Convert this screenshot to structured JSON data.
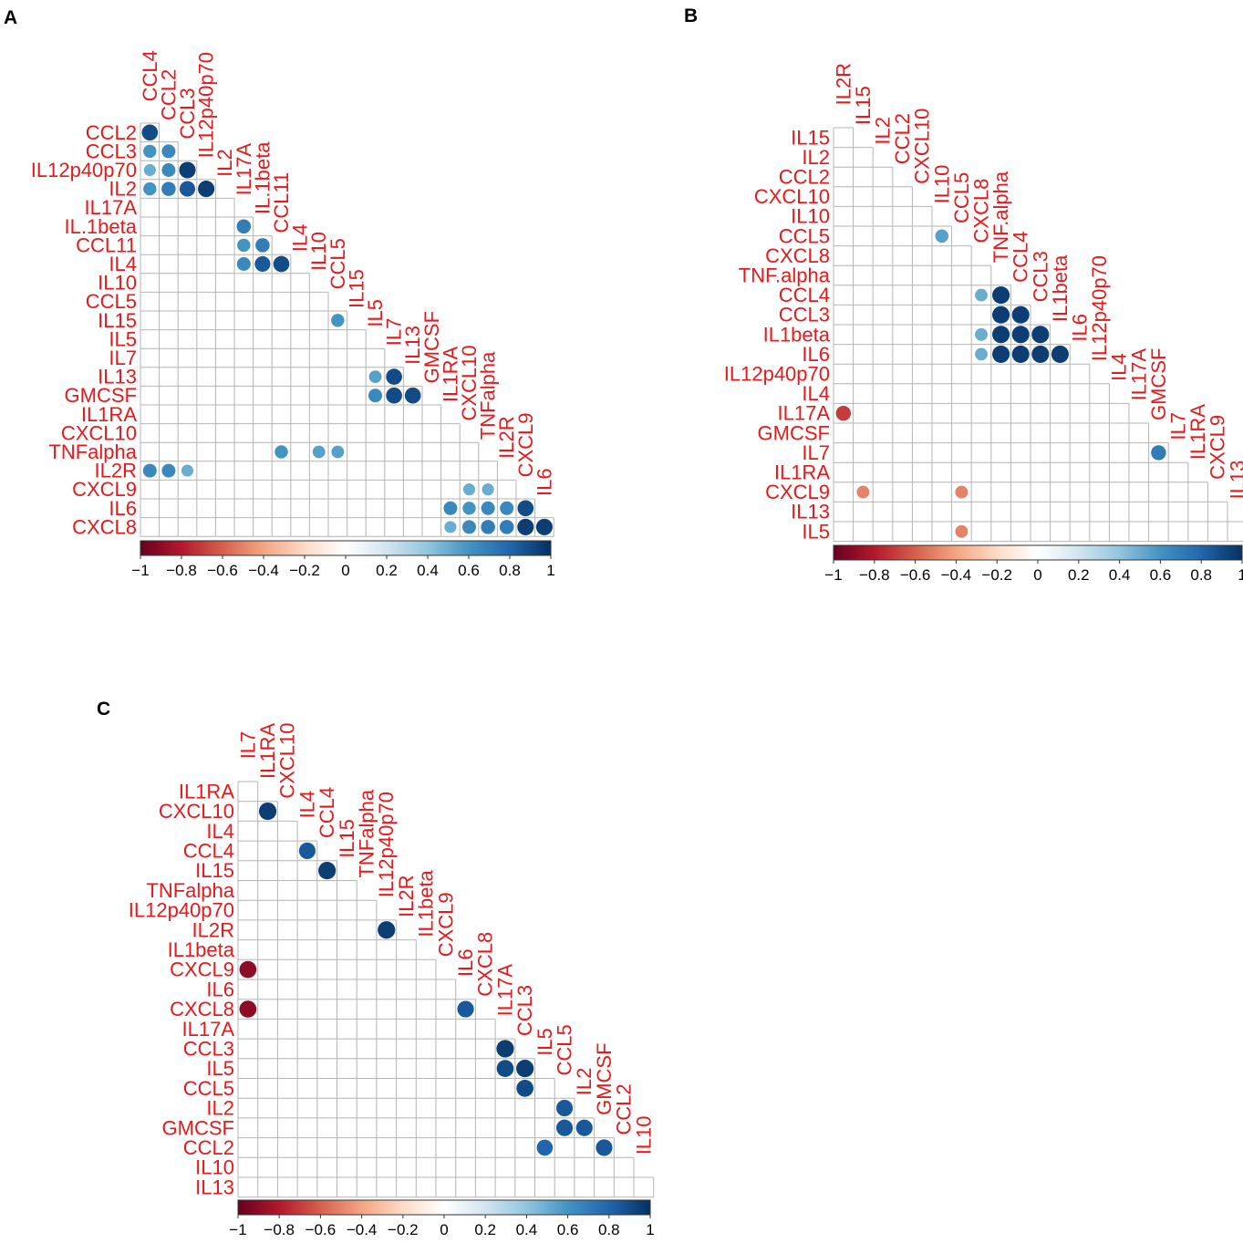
{
  "colors": {
    "label": "#e41a1c",
    "grid": "#b4b4b4",
    "colorscale": [
      "#67001f",
      "#b2182b",
      "#d6604d",
      "#f4a582",
      "#fddbc7",
      "#ffffff",
      "#d1e5f0",
      "#92c5de",
      "#4393c3",
      "#2166ac",
      "#053061"
    ]
  },
  "chart_data": [
    {
      "type": "heatmap",
      "subtype": "correlation-lower-triangle",
      "panel": "A",
      "labels": [
        "CCL4",
        "CCL2",
        "CCL3",
        "IL12p40p70",
        "IL2",
        "IL17A",
        "IL.1beta",
        "CCL11",
        "IL4",
        "IL10",
        "CCL5",
        "IL15",
        "IL5",
        "IL7",
        "IL13",
        "GMCSF",
        "IL1RA",
        "CXCL10",
        "TNFalpha",
        "IL2R",
        "CXCL9",
        "IL6",
        "CXCL8"
      ],
      "colorbar_ticks": [
        "−1",
        "−0.8",
        "−0.6",
        "−0.4",
        "−0.2",
        "0",
        "0.2",
        "0.4",
        "0.6",
        "0.8",
        "1"
      ],
      "colorbar_range": [
        -1,
        1
      ],
      "cells": [
        {
          "row": "CCL2",
          "col": "CCL4",
          "r": 0.9
        },
        {
          "row": "CCL3",
          "col": "CCL4",
          "r": 0.6
        },
        {
          "row": "CCL3",
          "col": "CCL2",
          "r": 0.65
        },
        {
          "row": "IL12p40p70",
          "col": "CCL4",
          "r": 0.5
        },
        {
          "row": "IL12p40p70",
          "col": "CCL2",
          "r": 0.65
        },
        {
          "row": "IL12p40p70",
          "col": "CCL3",
          "r": 0.95
        },
        {
          "row": "IL2",
          "col": "CCL4",
          "r": 0.6
        },
        {
          "row": "IL2",
          "col": "CCL2",
          "r": 0.7
        },
        {
          "row": "IL2",
          "col": "CCL3",
          "r": 0.85
        },
        {
          "row": "IL2",
          "col": "IL12p40p70",
          "r": 0.95
        },
        {
          "row": "IL.1beta",
          "col": "IL17A",
          "r": 0.7
        },
        {
          "row": "CCL11",
          "col": "IL17A",
          "r": 0.6
        },
        {
          "row": "CCL11",
          "col": "IL.1beta",
          "r": 0.7
        },
        {
          "row": "IL4",
          "col": "IL17A",
          "r": 0.65
        },
        {
          "row": "IL4",
          "col": "IL.1beta",
          "r": 0.85
        },
        {
          "row": "IL4",
          "col": "CCL11",
          "r": 0.9
        },
        {
          "row": "IL15",
          "col": "CCL5",
          "r": 0.6
        },
        {
          "row": "IL13",
          "col": "IL5",
          "r": 0.55
        },
        {
          "row": "IL13",
          "col": "IL7",
          "r": 0.9
        },
        {
          "row": "GMCSF",
          "col": "IL5",
          "r": 0.65
        },
        {
          "row": "GMCSF",
          "col": "IL7",
          "r": 0.9
        },
        {
          "row": "GMCSF",
          "col": "IL13",
          "r": 0.9
        },
        {
          "row": "TNFalpha",
          "col": "CCL11",
          "r": 0.6
        },
        {
          "row": "TNFalpha",
          "col": "IL10",
          "r": 0.55
        },
        {
          "row": "TNFalpha",
          "col": "CCL5",
          "r": 0.55
        },
        {
          "row": "IL2R",
          "col": "CCL4",
          "r": 0.65
        },
        {
          "row": "IL2R",
          "col": "CCL2",
          "r": 0.65
        },
        {
          "row": "IL2R",
          "col": "CCL3",
          "r": 0.5
        },
        {
          "row": "CXCL9",
          "col": "CXCL10",
          "r": 0.5
        },
        {
          "row": "CXCL9",
          "col": "TNFalpha",
          "r": 0.5
        },
        {
          "row": "IL6",
          "col": "IL1RA",
          "r": 0.65
        },
        {
          "row": "IL6",
          "col": "CXCL10",
          "r": 0.6
        },
        {
          "row": "IL6",
          "col": "TNFalpha",
          "r": 0.65
        },
        {
          "row": "IL6",
          "col": "IL2R",
          "r": 0.65
        },
        {
          "row": "IL6",
          "col": "CXCL9",
          "r": 0.9
        },
        {
          "row": "CXCL8",
          "col": "IL1RA",
          "r": 0.5
        },
        {
          "row": "CXCL8",
          "col": "CXCL10",
          "r": 0.65
        },
        {
          "row": "CXCL8",
          "col": "TNFalpha",
          "r": 0.7
        },
        {
          "row": "CXCL8",
          "col": "IL2R",
          "r": 0.7
        },
        {
          "row": "CXCL8",
          "col": "CXCL9",
          "r": 0.95
        },
        {
          "row": "CXCL8",
          "col": "IL6",
          "r": 0.95
        }
      ]
    },
    {
      "type": "heatmap",
      "subtype": "correlation-lower-triangle",
      "panel": "B",
      "labels": [
        "IL2R",
        "IL15",
        "IL2",
        "CCL2",
        "CXCL10",
        "IL10",
        "CCL5",
        "CXCL8",
        "TNF.alpha",
        "CCL4",
        "CCL3",
        "IL1beta",
        "IL6",
        "IL12p40p70",
        "IL4",
        "IL17A",
        "GMCSF",
        "IL7",
        "IL1RA",
        "CXCL9",
        "IL13",
        "IL5"
      ],
      "colorbar_ticks": [
        "−1",
        "−0.8",
        "−0.6",
        "−0.4",
        "−0.2",
        "0",
        "0.2",
        "0.4",
        "0.6",
        "0.8",
        "1"
      ],
      "colorbar_range": [
        -1,
        1
      ],
      "cells": [
        {
          "row": "CCL5",
          "col": "IL10",
          "r": 0.55
        },
        {
          "row": "CCL4",
          "col": "CXCL8",
          "r": 0.5
        },
        {
          "row": "CCL4",
          "col": "TNF.alpha",
          "r": 0.95
        },
        {
          "row": "CCL3",
          "col": "TNF.alpha",
          "r": 0.95
        },
        {
          "row": "CCL3",
          "col": "CCL4",
          "r": 0.95
        },
        {
          "row": "IL1beta",
          "col": "CXCL8",
          "r": 0.5
        },
        {
          "row": "IL1beta",
          "col": "TNF.alpha",
          "r": 0.95
        },
        {
          "row": "IL1beta",
          "col": "CCL4",
          "r": 0.95
        },
        {
          "row": "IL1beta",
          "col": "CCL3",
          "r": 0.95
        },
        {
          "row": "IL6",
          "col": "CXCL8",
          "r": 0.5
        },
        {
          "row": "IL6",
          "col": "TNF.alpha",
          "r": 0.95
        },
        {
          "row": "IL6",
          "col": "CCL4",
          "r": 0.95
        },
        {
          "row": "IL6",
          "col": "CCL3",
          "r": 0.95
        },
        {
          "row": "IL6",
          "col": "IL1beta",
          "r": 0.95
        },
        {
          "row": "IL17A",
          "col": "IL2R",
          "r": -0.7
        },
        {
          "row": "IL7",
          "col": "GMCSF",
          "r": 0.7
        },
        {
          "row": "CXCL9",
          "col": "IL15",
          "r": -0.5
        },
        {
          "row": "CXCL9",
          "col": "CCL5",
          "r": -0.5
        },
        {
          "row": "IL5",
          "col": "CCL5",
          "r": -0.5
        }
      ]
    },
    {
      "type": "heatmap",
      "subtype": "correlation-lower-triangle",
      "panel": "C",
      "labels": [
        "IL7",
        "IL1RA",
        "CXCL10",
        "IL4",
        "CCL4",
        "IL15",
        "TNFalpha",
        "IL12p40p70",
        "IL2R",
        "IL1beta",
        "CXCL9",
        "IL6",
        "CXCL8",
        "IL17A",
        "CCL3",
        "IL5",
        "CCL5",
        "IL2",
        "GMCSF",
        "CCL2",
        "IL10",
        "IL13"
      ],
      "colorbar_ticks": [
        "−1",
        "−0.8",
        "−0.6",
        "−0.4",
        "−0.2",
        "0",
        "0.2",
        "0.4",
        "0.6",
        "0.8",
        "1"
      ],
      "colorbar_range": [
        -1,
        1
      ],
      "cells": [
        {
          "row": "CXCL10",
          "col": "IL1RA",
          "r": 0.95
        },
        {
          "row": "CCL4",
          "col": "IL4",
          "r": 0.85
        },
        {
          "row": "IL15",
          "col": "CCL4",
          "r": 0.95
        },
        {
          "row": "IL2R",
          "col": "IL12p40p70",
          "r": 0.95
        },
        {
          "row": "CXCL9",
          "col": "IL7",
          "r": -0.9
        },
        {
          "row": "CXCL8",
          "col": "IL7",
          "r": -0.9
        },
        {
          "row": "CXCL8",
          "col": "IL6",
          "r": 0.85
        },
        {
          "row": "CCL3",
          "col": "IL17A",
          "r": 0.95
        },
        {
          "row": "IL5",
          "col": "IL17A",
          "r": 0.9
        },
        {
          "row": "IL5",
          "col": "CCL3",
          "r": 0.95
        },
        {
          "row": "CCL5",
          "col": "CCL3",
          "r": 0.9
        },
        {
          "row": "IL2",
          "col": "CCL5",
          "r": 0.85
        },
        {
          "row": "GMCSF",
          "col": "CCL5",
          "r": 0.85
        },
        {
          "row": "GMCSF",
          "col": "IL2",
          "r": 0.85
        },
        {
          "row": "CCL2",
          "col": "IL5",
          "r": 0.8
        },
        {
          "row": "CCL2",
          "col": "GMCSF",
          "r": 0.85
        }
      ]
    }
  ]
}
